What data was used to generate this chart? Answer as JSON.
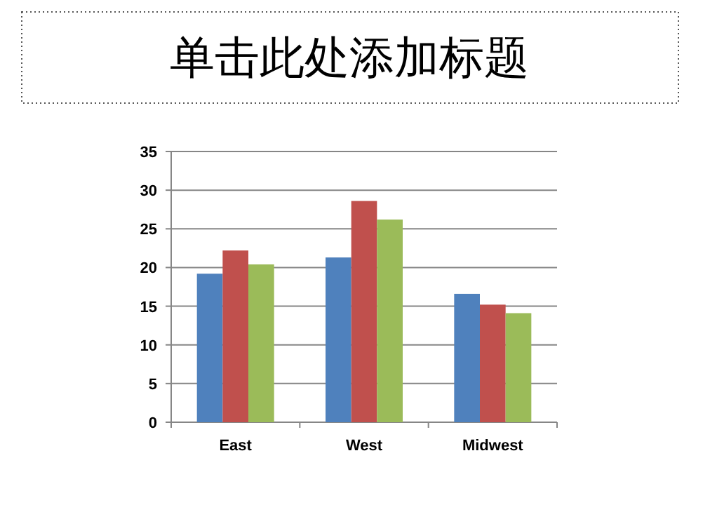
{
  "chart_data": {
    "type": "bar",
    "title": "单击此处添加标题",
    "categories": [
      "East",
      "West",
      "Midwest"
    ],
    "series": [
      {
        "color": "#4f81bd",
        "values": [
          19.2,
          21.3,
          16.6
        ]
      },
      {
        "color": "#c0504d",
        "values": [
          22.2,
          28.6,
          15.2
        ]
      },
      {
        "color": "#9bbb59",
        "values": [
          20.4,
          26.2,
          14.1
        ]
      }
    ],
    "ylim": [
      0,
      35
    ],
    "yticks": [
      0,
      5,
      10,
      15,
      20,
      25,
      30,
      35
    ],
    "grid": "y"
  }
}
